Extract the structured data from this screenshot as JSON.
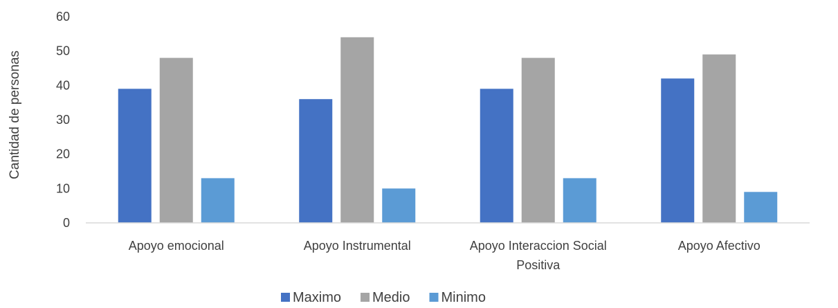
{
  "chart_data": {
    "type": "bar",
    "title": "",
    "xlabel": "",
    "ylabel": "Cantidad de personas",
    "ylim": [
      0,
      60
    ],
    "yticks": [
      0,
      10,
      20,
      30,
      40,
      50,
      60
    ],
    "categories": [
      "Apoyo emocional",
      "Apoyo Instrumental",
      "Apoyo Interaccion Social Positiva",
      "Apoyo Afectivo"
    ],
    "series": [
      {
        "name": "Maximo",
        "color": "#4472C4",
        "values": [
          39,
          36,
          39,
          42
        ]
      },
      {
        "name": "Medio",
        "color": "#A5A5A5",
        "values": [
          48,
          54,
          48,
          49
        ]
      },
      {
        "name": "Minimo",
        "color": "#5B9BD5",
        "values": [
          13,
          10,
          13,
          9
        ]
      }
    ],
    "grid": false,
    "legend_position": "bottom"
  }
}
